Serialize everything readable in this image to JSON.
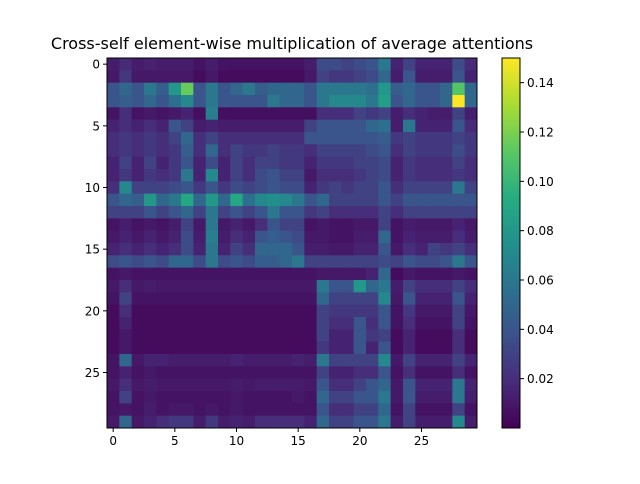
{
  "chart_data": {
    "type": "heatmap",
    "title": "Cross-self element-wise multiplication of average attentions",
    "rows": 30,
    "cols": 30,
    "x_ticks": [
      0,
      5,
      10,
      15,
      20,
      25
    ],
    "y_ticks": [
      0,
      5,
      10,
      15,
      20,
      25
    ],
    "colormap": "viridis",
    "colorbar": {
      "min": 0.0,
      "max": 0.15,
      "ticks": [
        0.02,
        0.04,
        0.06,
        0.08,
        0.1,
        0.12,
        0.14
      ],
      "tick_labels": [
        "0.02",
        "0.04",
        "0.06",
        "0.08",
        "0.10",
        "0.12",
        "0.14"
      ]
    },
    "note_values_estimated": true,
    "values": [
      [
        0.012,
        0.018,
        0.012,
        0.014,
        0.012,
        0.012,
        0.012,
        0.008,
        0.012,
        0.008,
        0.008,
        0.008,
        0.008,
        0.008,
        0.008,
        0.008,
        0.012,
        0.035,
        0.035,
        0.03,
        0.035,
        0.04,
        0.06,
        0.015,
        0.03,
        0.015,
        0.015,
        0.015,
        0.035,
        0.018
      ],
      [
        0.01,
        0.025,
        0.01,
        0.01,
        0.01,
        0.01,
        0.01,
        0.005,
        0.01,
        0.005,
        0.005,
        0.005,
        0.005,
        0.005,
        0.005,
        0.005,
        0.01,
        0.03,
        0.025,
        0.025,
        0.03,
        0.035,
        0.05,
        0.012,
        0.04,
        0.012,
        0.012,
        0.012,
        0.04,
        0.015
      ],
      [
        0.04,
        0.05,
        0.04,
        0.06,
        0.045,
        0.08,
        0.115,
        0.04,
        0.06,
        0.04,
        0.05,
        0.06,
        0.045,
        0.05,
        0.05,
        0.05,
        0.04,
        0.06,
        0.06,
        0.06,
        0.06,
        0.055,
        0.08,
        0.045,
        0.05,
        0.04,
        0.04,
        0.05,
        0.11,
        0.05
      ],
      [
        0.04,
        0.045,
        0.04,
        0.05,
        0.04,
        0.055,
        0.07,
        0.04,
        0.06,
        0.04,
        0.04,
        0.04,
        0.04,
        0.06,
        0.05,
        0.05,
        0.04,
        0.06,
        0.07,
        0.07,
        0.07,
        0.06,
        0.085,
        0.04,
        0.05,
        0.04,
        0.04,
        0.05,
        0.15,
        0.05
      ],
      [
        0.008,
        0.02,
        0.008,
        0.01,
        0.008,
        0.01,
        0.015,
        0.006,
        0.065,
        0.006,
        0.006,
        0.006,
        0.006,
        0.006,
        0.006,
        0.006,
        0.006,
        0.02,
        0.02,
        0.02,
        0.03,
        0.025,
        0.03,
        0.012,
        0.02,
        0.015,
        0.012,
        0.012,
        0.03,
        0.012
      ],
      [
        0.015,
        0.02,
        0.015,
        0.02,
        0.015,
        0.04,
        0.03,
        0.012,
        0.015,
        0.012,
        0.012,
        0.012,
        0.012,
        0.012,
        0.012,
        0.012,
        0.03,
        0.04,
        0.04,
        0.04,
        0.04,
        0.05,
        0.055,
        0.012,
        0.06,
        0.015,
        0.015,
        0.015,
        0.04,
        0.018
      ],
      [
        0.02,
        0.025,
        0.02,
        0.025,
        0.02,
        0.03,
        0.05,
        0.02,
        0.03,
        0.02,
        0.02,
        0.02,
        0.02,
        0.02,
        0.02,
        0.02,
        0.04,
        0.04,
        0.04,
        0.04,
        0.04,
        0.04,
        0.045,
        0.025,
        0.03,
        0.025,
        0.025,
        0.025,
        0.03,
        0.025
      ],
      [
        0.02,
        0.025,
        0.02,
        0.025,
        0.02,
        0.025,
        0.045,
        0.02,
        0.05,
        0.02,
        0.03,
        0.025,
        0.025,
        0.03,
        0.025,
        0.025,
        0.02,
        0.03,
        0.03,
        0.03,
        0.03,
        0.035,
        0.04,
        0.02,
        0.03,
        0.025,
        0.025,
        0.025,
        0.035,
        0.025
      ],
      [
        0.015,
        0.03,
        0.015,
        0.03,
        0.015,
        0.025,
        0.04,
        0.015,
        0.035,
        0.015,
        0.03,
        0.02,
        0.03,
        0.03,
        0.025,
        0.025,
        0.015,
        0.025,
        0.025,
        0.025,
        0.03,
        0.03,
        0.035,
        0.015,
        0.025,
        0.02,
        0.02,
        0.02,
        0.03,
        0.02
      ],
      [
        0.015,
        0.025,
        0.015,
        0.025,
        0.02,
        0.025,
        0.06,
        0.015,
        0.07,
        0.015,
        0.03,
        0.02,
        0.035,
        0.04,
        0.03,
        0.03,
        0.01,
        0.02,
        0.02,
        0.02,
        0.025,
        0.03,
        0.035,
        0.015,
        0.025,
        0.02,
        0.02,
        0.02,
        0.025,
        0.02
      ],
      [
        0.02,
        0.07,
        0.03,
        0.03,
        0.03,
        0.035,
        0.04,
        0.025,
        0.04,
        0.025,
        0.035,
        0.03,
        0.035,
        0.04,
        0.035,
        0.035,
        0.015,
        0.025,
        0.03,
        0.025,
        0.03,
        0.03,
        0.04,
        0.02,
        0.03,
        0.03,
        0.03,
        0.03,
        0.06,
        0.03
      ],
      [
        0.04,
        0.05,
        0.045,
        0.08,
        0.05,
        0.06,
        0.09,
        0.05,
        0.08,
        0.05,
        0.09,
        0.055,
        0.07,
        0.075,
        0.07,
        0.06,
        0.04,
        0.05,
        0.03,
        0.03,
        0.03,
        0.03,
        0.04,
        0.03,
        0.04,
        0.04,
        0.04,
        0.04,
        0.04,
        0.04
      ],
      [
        0.03,
        0.03,
        0.03,
        0.04,
        0.03,
        0.04,
        0.05,
        0.03,
        0.06,
        0.03,
        0.04,
        0.03,
        0.04,
        0.06,
        0.04,
        0.04,
        0.025,
        0.03,
        0.02,
        0.02,
        0.02,
        0.02,
        0.03,
        0.02,
        0.03,
        0.03,
        0.03,
        0.03,
        0.03,
        0.03
      ],
      [
        0.008,
        0.012,
        0.008,
        0.01,
        0.008,
        0.012,
        0.03,
        0.01,
        0.06,
        0.01,
        0.015,
        0.01,
        0.02,
        0.04,
        0.03,
        0.03,
        0.008,
        0.01,
        0.008,
        0.008,
        0.01,
        0.01,
        0.03,
        0.008,
        0.012,
        0.01,
        0.01,
        0.01,
        0.015,
        0.01
      ],
      [
        0.01,
        0.015,
        0.01,
        0.015,
        0.01,
        0.015,
        0.035,
        0.012,
        0.065,
        0.012,
        0.02,
        0.015,
        0.04,
        0.045,
        0.04,
        0.035,
        0.01,
        0.01,
        0.008,
        0.008,
        0.012,
        0.012,
        0.05,
        0.008,
        0.015,
        0.012,
        0.012,
        0.012,
        0.02,
        0.012
      ],
      [
        0.015,
        0.02,
        0.015,
        0.02,
        0.015,
        0.02,
        0.035,
        0.015,
        0.06,
        0.015,
        0.03,
        0.02,
        0.05,
        0.05,
        0.05,
        0.04,
        0.012,
        0.012,
        0.01,
        0.01,
        0.015,
        0.015,
        0.04,
        0.01,
        0.02,
        0.015,
        0.03,
        0.025,
        0.03,
        0.02
      ],
      [
        0.035,
        0.04,
        0.035,
        0.04,
        0.035,
        0.05,
        0.05,
        0.035,
        0.06,
        0.035,
        0.04,
        0.035,
        0.045,
        0.045,
        0.05,
        0.06,
        0.03,
        0.03,
        0.03,
        0.03,
        0.03,
        0.03,
        0.035,
        0.03,
        0.04,
        0.035,
        0.035,
        0.04,
        0.06,
        0.04
      ],
      [
        0.008,
        0.01,
        0.008,
        0.008,
        0.008,
        0.008,
        0.008,
        0.008,
        0.008,
        0.008,
        0.008,
        0.008,
        0.008,
        0.008,
        0.008,
        0.008,
        0.008,
        0.01,
        0.01,
        0.01,
        0.01,
        0.015,
        0.05,
        0.005,
        0.01,
        0.008,
        0.008,
        0.008,
        0.01,
        0.008
      ],
      [
        0.01,
        0.02,
        0.01,
        0.012,
        0.01,
        0.01,
        0.01,
        0.01,
        0.01,
        0.01,
        0.01,
        0.01,
        0.01,
        0.01,
        0.01,
        0.01,
        0.01,
        0.06,
        0.04,
        0.04,
        0.08,
        0.05,
        0.06,
        0.012,
        0.03,
        0.02,
        0.02,
        0.02,
        0.03,
        0.02
      ],
      [
        0.008,
        0.03,
        0.008,
        0.008,
        0.008,
        0.008,
        0.008,
        0.008,
        0.008,
        0.008,
        0.008,
        0.008,
        0.008,
        0.008,
        0.008,
        0.008,
        0.008,
        0.05,
        0.03,
        0.03,
        0.03,
        0.03,
        0.07,
        0.01,
        0.04,
        0.015,
        0.015,
        0.015,
        0.04,
        0.015
      ],
      [
        0.005,
        0.02,
        0.005,
        0.005,
        0.005,
        0.005,
        0.005,
        0.005,
        0.005,
        0.005,
        0.005,
        0.005,
        0.005,
        0.005,
        0.005,
        0.005,
        0.005,
        0.03,
        0.025,
        0.025,
        0.025,
        0.025,
        0.04,
        0.008,
        0.025,
        0.01,
        0.01,
        0.01,
        0.03,
        0.01
      ],
      [
        0.005,
        0.015,
        0.005,
        0.005,
        0.005,
        0.005,
        0.005,
        0.005,
        0.005,
        0.005,
        0.005,
        0.005,
        0.005,
        0.005,
        0.005,
        0.005,
        0.005,
        0.03,
        0.02,
        0.02,
        0.04,
        0.02,
        0.04,
        0.008,
        0.02,
        0.008,
        0.008,
        0.008,
        0.03,
        0.008
      ],
      [
        0.005,
        0.01,
        0.005,
        0.005,
        0.005,
        0.005,
        0.005,
        0.005,
        0.005,
        0.005,
        0.005,
        0.005,
        0.005,
        0.005,
        0.005,
        0.005,
        0.005,
        0.03,
        0.015,
        0.015,
        0.04,
        0.025,
        0.03,
        0.005,
        0.015,
        0.005,
        0.005,
        0.005,
        0.02,
        0.005
      ],
      [
        0.005,
        0.01,
        0.005,
        0.005,
        0.005,
        0.005,
        0.005,
        0.005,
        0.005,
        0.005,
        0.005,
        0.005,
        0.005,
        0.005,
        0.005,
        0.005,
        0.005,
        0.025,
        0.015,
        0.015,
        0.04,
        0.015,
        0.04,
        0.005,
        0.015,
        0.005,
        0.005,
        0.005,
        0.02,
        0.005
      ],
      [
        0.008,
        0.05,
        0.01,
        0.015,
        0.015,
        0.012,
        0.012,
        0.012,
        0.012,
        0.012,
        0.015,
        0.012,
        0.012,
        0.012,
        0.012,
        0.015,
        0.012,
        0.06,
        0.03,
        0.03,
        0.03,
        0.03,
        0.07,
        0.01,
        0.03,
        0.015,
        0.015,
        0.015,
        0.03,
        0.015
      ],
      [
        0.008,
        0.015,
        0.008,
        0.01,
        0.008,
        0.008,
        0.008,
        0.008,
        0.008,
        0.008,
        0.008,
        0.008,
        0.008,
        0.008,
        0.008,
        0.008,
        0.008,
        0.03,
        0.015,
        0.015,
        0.02,
        0.02,
        0.04,
        0.008,
        0.02,
        0.008,
        0.008,
        0.008,
        0.02,
        0.008
      ],
      [
        0.01,
        0.02,
        0.01,
        0.012,
        0.01,
        0.01,
        0.01,
        0.01,
        0.01,
        0.01,
        0.012,
        0.01,
        0.012,
        0.012,
        0.012,
        0.012,
        0.01,
        0.04,
        0.02,
        0.02,
        0.03,
        0.04,
        0.05,
        0.01,
        0.04,
        0.015,
        0.015,
        0.015,
        0.06,
        0.015
      ],
      [
        0.008,
        0.03,
        0.008,
        0.01,
        0.008,
        0.008,
        0.008,
        0.008,
        0.008,
        0.008,
        0.01,
        0.008,
        0.008,
        0.008,
        0.008,
        0.01,
        0.008,
        0.05,
        0.03,
        0.03,
        0.04,
        0.04,
        0.06,
        0.01,
        0.04,
        0.012,
        0.012,
        0.012,
        0.06,
        0.012
      ],
      [
        0.008,
        0.01,
        0.008,
        0.012,
        0.008,
        0.01,
        0.01,
        0.008,
        0.01,
        0.008,
        0.01,
        0.008,
        0.008,
        0.008,
        0.008,
        0.008,
        0.008,
        0.04,
        0.02,
        0.02,
        0.03,
        0.03,
        0.05,
        0.008,
        0.03,
        0.008,
        0.008,
        0.008,
        0.03,
        0.008
      ],
      [
        0.01,
        0.05,
        0.01,
        0.015,
        0.02,
        0.025,
        0.025,
        0.012,
        0.025,
        0.012,
        0.015,
        0.012,
        0.02,
        0.02,
        0.02,
        0.02,
        0.015,
        0.05,
        0.03,
        0.03,
        0.04,
        0.04,
        0.06,
        0.012,
        0.03,
        0.012,
        0.012,
        0.012,
        0.07,
        0.012
      ]
    ]
  }
}
